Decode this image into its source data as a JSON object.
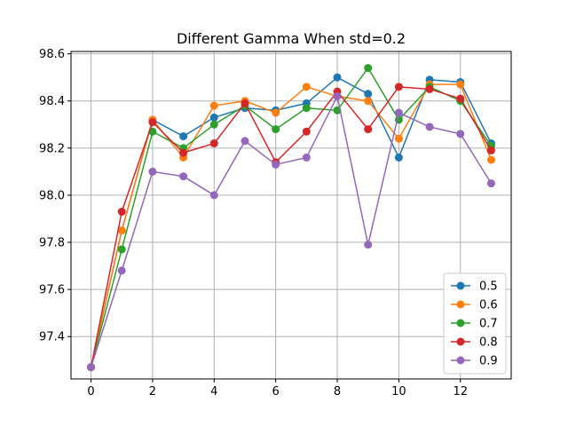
{
  "chart_data": {
    "type": "line",
    "title": "Different Gamma When std=0.2",
    "xlabel": "",
    "ylabel": "",
    "xlim": [
      -0.65,
      13.65
    ],
    "ylim": [
      97.22,
      98.61
    ],
    "x_ticks": [
      0,
      2,
      4,
      6,
      8,
      10,
      12
    ],
    "y_ticks": [
      97.4,
      97.6,
      97.8,
      98.0,
      98.2,
      98.4,
      98.6
    ],
    "grid": true,
    "legend_position": "bottom-right",
    "x": [
      0,
      1,
      2,
      3,
      4,
      5,
      6,
      7,
      8,
      9,
      10,
      11,
      12,
      13
    ],
    "series": [
      {
        "name": "0.5",
        "color": "#1f77b4",
        "values": [
          97.27,
          97.85,
          98.32,
          98.25,
          98.33,
          98.37,
          98.36,
          98.39,
          98.5,
          98.43,
          98.16,
          98.49,
          98.48,
          98.22
        ]
      },
      {
        "name": "0.6",
        "color": "#ff7f0e",
        "values": [
          97.27,
          97.85,
          98.32,
          98.16,
          98.38,
          98.4,
          98.35,
          98.46,
          98.42,
          98.4,
          98.24,
          98.47,
          98.47,
          98.15
        ]
      },
      {
        "name": "0.7",
        "color": "#2ca02c",
        "values": [
          97.27,
          97.77,
          98.27,
          98.2,
          98.3,
          98.38,
          98.28,
          98.37,
          98.36,
          98.54,
          98.32,
          98.46,
          98.4,
          98.21
        ]
      },
      {
        "name": "0.8",
        "color": "#d62728",
        "values": [
          97.27,
          97.93,
          98.31,
          98.18,
          98.22,
          98.39,
          98.14,
          98.27,
          98.44,
          98.28,
          98.46,
          98.45,
          98.41,
          98.19
        ]
      },
      {
        "name": "0.9",
        "color": "#9467bd",
        "values": [
          97.27,
          97.68,
          98.1,
          98.08,
          98.0,
          98.23,
          98.13,
          98.16,
          98.42,
          97.79,
          98.35,
          98.29,
          98.26,
          98.05
        ]
      }
    ]
  }
}
